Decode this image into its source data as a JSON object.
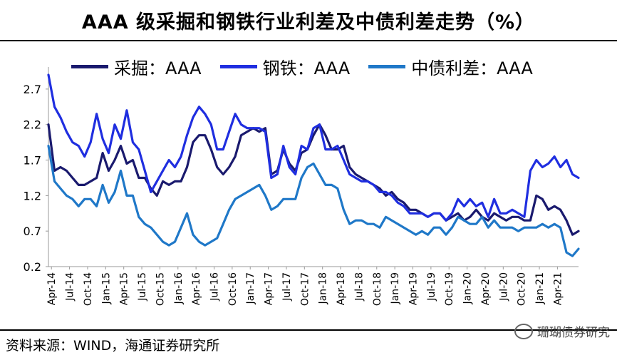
{
  "title": "AAA 级采掘和钢铁行业利差及中债利差走势（%）",
  "footer": "资料来源：WIND，海通证券研究所",
  "watermark": "珊瑚债券研究",
  "chart_data": {
    "type": "line",
    "title": "AAA 级采掘和钢铁行业利差及中债利差走势（%）",
    "ylim": [
      0.2,
      2.95
    ],
    "yticks": [
      "2.7",
      "2.2",
      "1.7",
      "1.2",
      "0.7",
      "0.2"
    ],
    "ytick_values": [
      2.7,
      2.2,
      1.7,
      1.2,
      0.7,
      0.2
    ],
    "xticks": [
      "Apr-14",
      "Jul-14",
      "Oct-14",
      "Jan-15",
      "Apr-15",
      "Jul-15",
      "Oct-15",
      "Jan-16",
      "Apr-16",
      "Jul-16",
      "Oct-16",
      "Jan-17",
      "Apr-17",
      "Jul-17",
      "Oct-17",
      "Jan-18",
      "Apr-18",
      "Jul-18",
      "Oct-18",
      "Jan-19",
      "Apr-19",
      "Jul-19",
      "Oct-19",
      "Jan-20",
      "Apr-20",
      "Jul-20",
      "Oct-20",
      "Jan-21",
      "Apr-21"
    ],
    "x_range": [
      0,
      88
    ],
    "legend": "top",
    "series": [
      {
        "name": "采掘：AAA",
        "color": "#1a1a6e",
        "x": [
          0,
          1,
          2,
          3,
          4,
          5,
          6,
          7,
          8,
          9,
          10,
          11,
          12,
          13,
          14,
          15,
          16,
          17,
          18,
          19,
          20,
          21,
          22,
          23,
          24,
          25,
          26,
          27,
          28,
          29,
          30,
          31,
          32,
          33,
          34,
          35,
          36,
          37,
          38,
          39,
          40,
          41,
          42,
          43,
          44,
          45,
          46,
          47,
          48,
          49,
          50,
          51,
          52,
          53,
          54,
          55,
          56,
          57,
          58,
          59,
          60,
          61,
          62,
          63,
          64,
          65,
          66,
          67,
          68,
          69,
          70,
          71,
          72,
          73,
          74,
          75,
          76,
          77,
          78,
          79,
          80,
          81,
          82,
          83,
          84,
          85,
          86,
          87,
          88
        ],
        "values": [
          2.2,
          1.55,
          1.6,
          1.55,
          1.45,
          1.35,
          1.35,
          1.4,
          1.45,
          1.8,
          1.55,
          1.7,
          1.9,
          1.65,
          1.7,
          1.45,
          1.45,
          1.3,
          1.2,
          1.4,
          1.35,
          1.4,
          1.4,
          1.6,
          1.95,
          2.05,
          2.05,
          1.85,
          1.6,
          1.5,
          1.6,
          1.75,
          2.05,
          2.1,
          2.15,
          2.1,
          2.15,
          1.5,
          1.55,
          1.85,
          1.65,
          1.55,
          1.8,
          1.85,
          2.05,
          2.2,
          2.05,
          1.85,
          1.85,
          1.9,
          1.6,
          1.5,
          1.45,
          1.4,
          1.35,
          1.3,
          1.2,
          1.25,
          1.15,
          1.1,
          1.0,
          1.0,
          0.95,
          0.9,
          0.95,
          0.95,
          0.85,
          0.9,
          0.95,
          0.85,
          0.9,
          1.0,
          0.9,
          0.85,
          0.95,
          0.9,
          0.85,
          0.9,
          0.9,
          0.85,
          0.85,
          1.2,
          1.15,
          1.0,
          1.05,
          1.0,
          0.85,
          0.65,
          0.7
        ]
      },
      {
        "name": "钢铁：AAA",
        "color": "#1f2ee0",
        "x": [
          0,
          1,
          2,
          3,
          4,
          5,
          6,
          7,
          8,
          9,
          10,
          11,
          12,
          13,
          14,
          15,
          16,
          17,
          18,
          19,
          20,
          21,
          22,
          23,
          24,
          25,
          26,
          27,
          28,
          29,
          30,
          31,
          32,
          33,
          34,
          35,
          36,
          37,
          38,
          39,
          40,
          41,
          42,
          43,
          44,
          45,
          46,
          47,
          48,
          49,
          50,
          51,
          52,
          53,
          54,
          55,
          56,
          57,
          58,
          59,
          60,
          61,
          62,
          63,
          64,
          65,
          66,
          67,
          68,
          69,
          70,
          71,
          72,
          73,
          74,
          75,
          76,
          77,
          78,
          79,
          80,
          81,
          82,
          83,
          84,
          85,
          86,
          87,
          88
        ],
        "values": [
          2.9,
          2.45,
          2.3,
          2.1,
          1.95,
          1.9,
          1.75,
          1.95,
          2.35,
          2.0,
          1.8,
          2.2,
          2.0,
          2.4,
          1.95,
          1.85,
          1.55,
          1.25,
          1.4,
          1.55,
          1.7,
          1.6,
          1.75,
          2.05,
          2.3,
          2.45,
          2.35,
          2.2,
          1.85,
          1.85,
          2.1,
          2.35,
          2.2,
          2.15,
          2.15,
          2.15,
          2.1,
          1.45,
          1.5,
          1.9,
          1.6,
          1.5,
          1.9,
          1.85,
          2.15,
          2.2,
          1.85,
          1.85,
          1.9,
          1.7,
          1.5,
          1.45,
          1.4,
          1.4,
          1.35,
          1.25,
          1.25,
          1.2,
          1.1,
          1.05,
          0.95,
          0.95,
          0.95,
          0.9,
          0.95,
          0.95,
          0.85,
          0.95,
          1.15,
          1.05,
          1.15,
          1.05,
          1.1,
          0.9,
          1.15,
          0.95,
          0.95,
          1.0,
          0.95,
          0.9,
          1.55,
          1.7,
          1.6,
          1.65,
          1.75,
          1.6,
          1.7,
          1.5,
          1.45
        ]
      },
      {
        "name": "中债利差：AAA",
        "color": "#1f78c8",
        "x": [
          0,
          1,
          2,
          3,
          4,
          5,
          6,
          7,
          8,
          9,
          10,
          11,
          12,
          13,
          14,
          15,
          16,
          17,
          18,
          19,
          20,
          21,
          22,
          23,
          24,
          25,
          26,
          27,
          28,
          29,
          30,
          31,
          32,
          33,
          34,
          35,
          36,
          37,
          38,
          39,
          40,
          41,
          42,
          43,
          44,
          45,
          46,
          47,
          48,
          49,
          50,
          51,
          52,
          53,
          54,
          55,
          56,
          57,
          58,
          59,
          60,
          61,
          62,
          63,
          64,
          65,
          66,
          67,
          68,
          69,
          70,
          71,
          72,
          73,
          74,
          75,
          76,
          77,
          78,
          79,
          80,
          81,
          82,
          83,
          84,
          85,
          86,
          87,
          88
        ],
        "values": [
          1.9,
          1.4,
          1.3,
          1.2,
          1.15,
          1.05,
          1.15,
          1.15,
          1.05,
          1.35,
          1.1,
          1.25,
          1.55,
          1.2,
          1.2,
          0.9,
          0.8,
          0.75,
          0.65,
          0.55,
          0.5,
          0.55,
          0.75,
          0.95,
          0.65,
          0.55,
          0.5,
          0.55,
          0.6,
          0.8,
          1.0,
          1.15,
          1.2,
          1.25,
          1.3,
          1.35,
          1.2,
          1.0,
          1.05,
          1.15,
          1.15,
          1.15,
          1.45,
          1.6,
          1.65,
          1.5,
          1.35,
          1.35,
          1.3,
          1.0,
          0.8,
          0.85,
          0.85,
          0.8,
          0.8,
          0.75,
          0.9,
          0.85,
          0.8,
          0.75,
          0.7,
          0.65,
          0.7,
          0.65,
          0.75,
          0.75,
          0.65,
          0.75,
          0.9,
          0.85,
          0.8,
          0.8,
          0.9,
          0.75,
          0.85,
          0.75,
          0.75,
          0.75,
          0.7,
          0.75,
          0.75,
          0.75,
          0.8,
          0.75,
          0.8,
          0.75,
          0.4,
          0.35,
          0.45
        ]
      }
    ]
  }
}
